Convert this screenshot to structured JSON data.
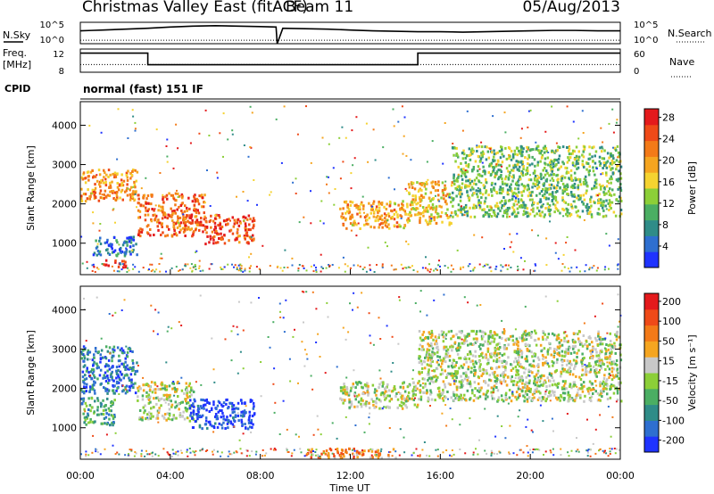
{
  "header": {
    "title": "Christmas Valley East (fitACF)",
    "beam": "Beam 11",
    "date": "05/Aug/2013"
  },
  "chart_data": [
    {
      "type": "line",
      "id": "noise",
      "left_label": "N.Sky",
      "right_label": "N.Search",
      "left_ticks": [
        "10^5",
        "10^0"
      ],
      "right_ticks": [
        "10^5",
        "10^0"
      ],
      "y_log": true,
      "x_range_hours": [
        0,
        24
      ],
      "series": [
        {
          "line_style": "solid",
          "x_hours": [
            0.0,
            0.5,
            1.0,
            2.0,
            3.0,
            4.0,
            5.0,
            6.0,
            7.0,
            8.0,
            8.7,
            8.75,
            9.0,
            10.0,
            11.0,
            12.0,
            13.0,
            14.0,
            15.0,
            16.0,
            17.0,
            18.0,
            19.0,
            20.0,
            21.0,
            22.0,
            23.0,
            24.0
          ],
          "y_log10": [
            3.0,
            3.1,
            3.2,
            3.4,
            3.6,
            3.9,
            4.1,
            4.2,
            4.1,
            4.0,
            3.9,
            0.0,
            3.6,
            3.5,
            3.4,
            3.2,
            3.0,
            2.9,
            2.8,
            2.8,
            2.7,
            2.8,
            2.9,
            3.0,
            3.1,
            3.1,
            3.0,
            3.0
          ]
        },
        {
          "line_style": "dotted",
          "x_hours": [
            0,
            24
          ],
          "y_log10": [
            0.8,
            0.8
          ]
        }
      ]
    },
    {
      "type": "line",
      "id": "frequency",
      "left_label": "Freq.",
      "left_unit": "[MHz]",
      "right_label": "Nave",
      "left_ticks": [
        "12",
        "8"
      ],
      "right_ticks": [
        "60",
        "0"
      ],
      "series": [
        {
          "name": "Freq.",
          "line_style": "solid",
          "x_hours": [
            0,
            3.0,
            3.0,
            15.0,
            15.0,
            24
          ],
          "y": [
            11.3,
            11.3,
            9.3,
            9.3,
            11.3,
            11.3
          ]
        },
        {
          "name": "Nave",
          "line_style": "dotted",
          "x_hours": [
            0,
            24
          ],
          "y_right": [
            20,
            20
          ]
        }
      ]
    },
    {
      "type": "table",
      "id": "cpid",
      "label": "CPID",
      "value": "normal (fast) 151 IF"
    },
    {
      "type": "heatmap",
      "id": "power",
      "ylabel": "Slant Range [km]",
      "yticks": [
        "1000",
        "2000",
        "3000",
        "4000"
      ],
      "ylim": [
        200,
        4600
      ],
      "x_range_hours": [
        0,
        24
      ],
      "colorbar": {
        "label": "Power [dB]",
        "ticks": [
          "4",
          "8",
          "12",
          "16",
          "20",
          "24",
          "28"
        ],
        "range": [
          0,
          30
        ],
        "colors": [
          "#1f33ff",
          "#2e6fd0",
          "#2f8c88",
          "#4bae63",
          "#8ccf38",
          "#f5d330",
          "#f5a520",
          "#f37a18",
          "#ef4a18",
          "#e41a1c"
        ]
      },
      "regions": [
        {
          "x": [
            0.0,
            2.5
          ],
          "y": [
            2100,
            2900
          ],
          "level": 0.7
        },
        {
          "x": [
            2.5,
            5.5
          ],
          "y": [
            1200,
            2300
          ],
          "level": 0.8
        },
        {
          "x": [
            5.5,
            7.7
          ],
          "y": [
            1000,
            1750
          ],
          "level": 0.85
        },
        {
          "x": [
            1.0,
            2.0
          ],
          "y": [
            400,
            600
          ],
          "level": 0.9
        },
        {
          "x": [
            0.5,
            2.5
          ],
          "y": [
            700,
            1200
          ],
          "level": 0.2
        },
        {
          "x": [
            11.5,
            14.5
          ],
          "y": [
            1400,
            2100
          ],
          "level": 0.65
        },
        {
          "x": [
            14.5,
            16.5
          ],
          "y": [
            1500,
            2600
          ],
          "level": 0.6
        },
        {
          "x": [
            16.5,
            24.0
          ],
          "y": [
            1700,
            3500
          ],
          "level": 0.4
        }
      ]
    },
    {
      "type": "heatmap",
      "id": "velocity",
      "ylabel": "Slant Range [km]",
      "yticks": [
        "1000",
        "2000",
        "3000",
        "4000"
      ],
      "ylim": [
        200,
        4600
      ],
      "xticks": [
        "00:00",
        "04:00",
        "08:00",
        "12:00",
        "16:00",
        "20:00",
        "00:00"
      ],
      "xlabel": "Time UT",
      "x_range_hours": [
        0,
        24
      ],
      "colorbar": {
        "label": "Velocity [m s⁻¹]",
        "ticks": [
          "200",
          "100",
          "50",
          "15",
          "-15",
          "-50",
          "-100",
          "-200"
        ],
        "range": [
          -250,
          250
        ],
        "colors": [
          "#1f33ff",
          "#2e6fd0",
          "#2f8c88",
          "#4bae63",
          "#8ccf38",
          "#c8c8c8",
          "#f5a520",
          "#f37a18",
          "#ef4a18",
          "#e41a1c"
        ]
      },
      "regions": [
        {
          "x": [
            0.0,
            2.5
          ],
          "y": [
            1900,
            3100
          ],
          "level": 0.2
        },
        {
          "x": [
            2.5,
            5.0
          ],
          "y": [
            1200,
            2200
          ],
          "level": 0.5
        },
        {
          "x": [
            4.8,
            7.7
          ],
          "y": [
            1000,
            1750
          ],
          "level": 0.05
        },
        {
          "x": [
            0.0,
            1.5
          ],
          "y": [
            1100,
            1800
          ],
          "level": 0.3
        },
        {
          "x": [
            10.0,
            14.0
          ],
          "y": [
            250,
            500
          ],
          "level": 0.7
        },
        {
          "x": [
            11.5,
            15.0
          ],
          "y": [
            1500,
            2200
          ],
          "level": 0.5
        },
        {
          "x": [
            15.0,
            24.0
          ],
          "y": [
            1700,
            3500
          ],
          "level": 0.5
        }
      ]
    }
  ]
}
